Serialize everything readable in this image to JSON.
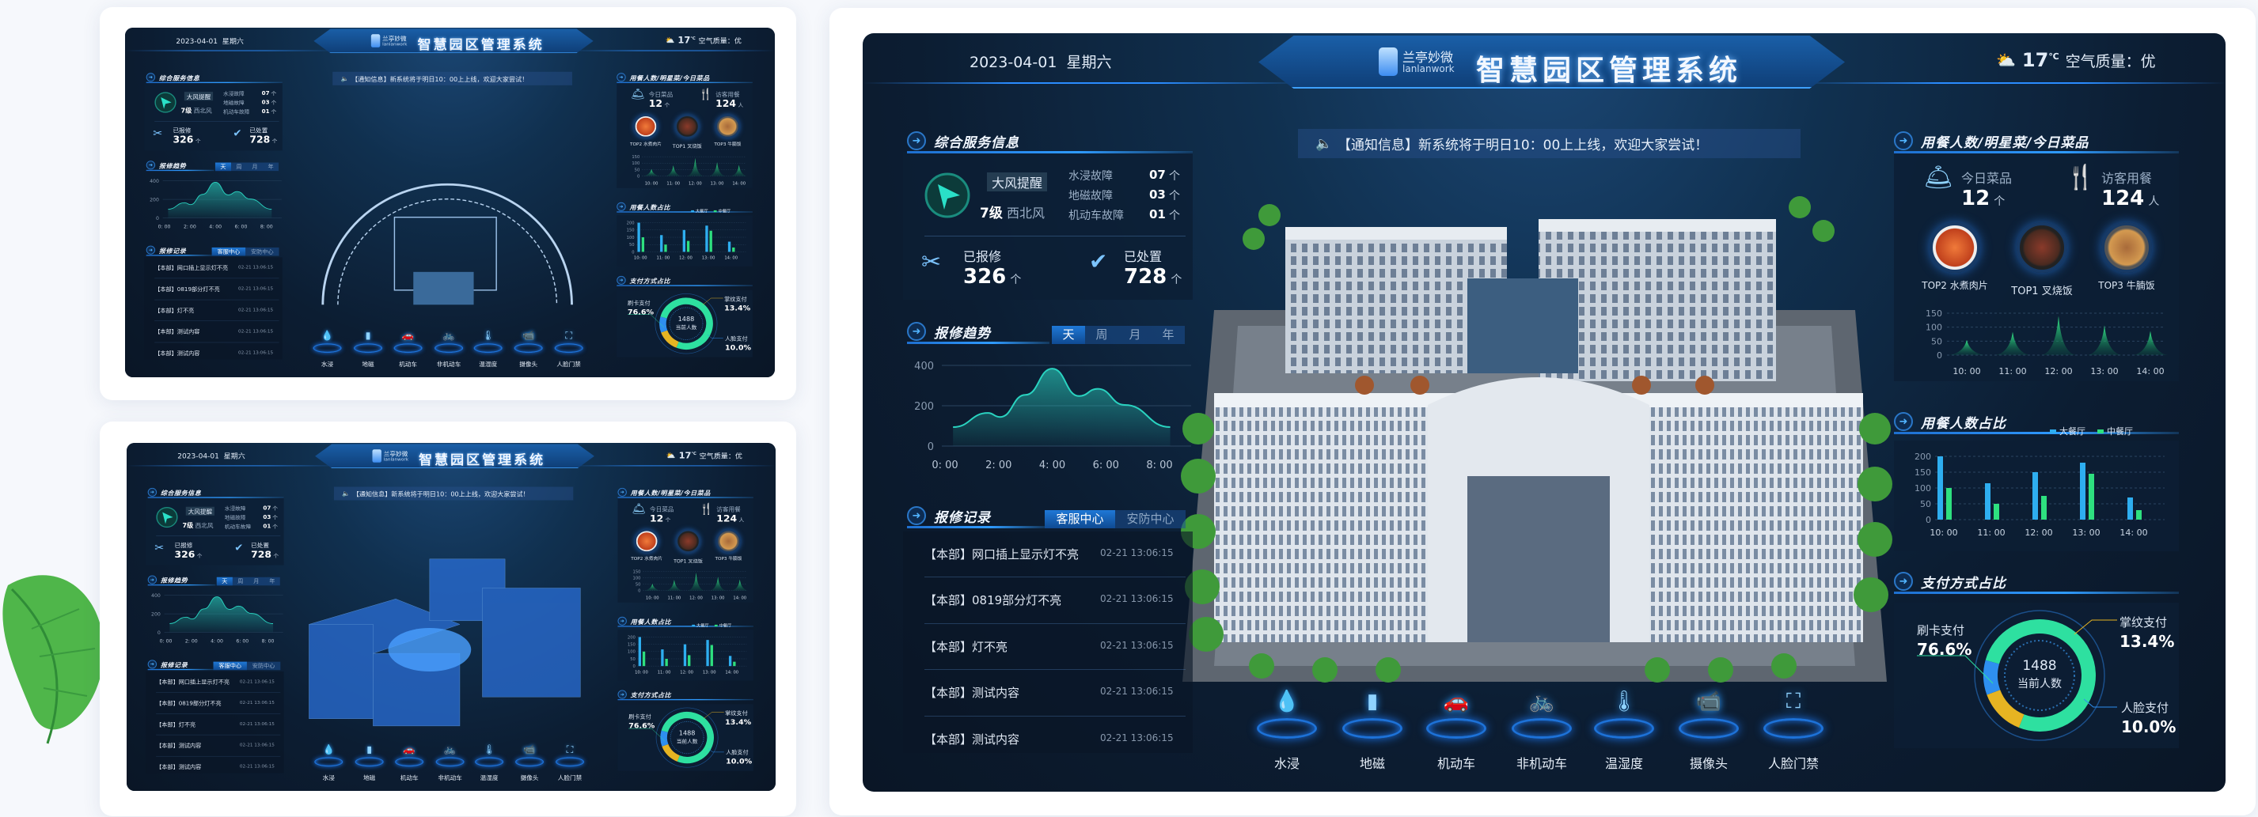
{
  "header": {
    "date": "2023-04-01",
    "weekday": "星期六",
    "logo_cn": "兰亭妙微",
    "logo_en": "lanlanwork",
    "title": "智慧园区管理系统",
    "temperature": "17",
    "temp_unit": "℃",
    "air_quality_label": "空气质量：",
    "air_quality": "优",
    "weather_icon": "partly-cloudy-icon"
  },
  "notice": {
    "text": "【通知信息】新系统将于明日10：00上上线，欢迎大家尝试！",
    "icon": "speaker-icon"
  },
  "left": {
    "service": {
      "title": "综合服务信息",
      "alert_title": "大风提醒",
      "alert_level": "7级",
      "alert_dir": "西北风",
      "faults": [
        {
          "label": "水浸故障",
          "value": "07",
          "unit": "个"
        },
        {
          "label": "地磁故障",
          "value": "03",
          "unit": "个"
        },
        {
          "label": "机动车故障",
          "value": "01",
          "unit": "个"
        }
      ],
      "reported": {
        "label": "已报修",
        "value": "326",
        "unit": "个"
      },
      "handled": {
        "label": "已处置",
        "value": "728",
        "unit": "个"
      }
    },
    "trend": {
      "title": "报修趋势",
      "tabs": [
        "天",
        "周",
        "月",
        "年"
      ],
      "active_tab": "天"
    },
    "records": {
      "title": "报修记录",
      "tabs": [
        "客服中心",
        "安防中心"
      ],
      "active_tab": "客服中心",
      "items": [
        {
          "text": "【本部】网口插上显示灯不亮",
          "time": "02-21  13:06:15"
        },
        {
          "text": "【本部】0819部分灯不亮",
          "time": "02-21  13:06:15"
        },
        {
          "text": "【本部】灯不亮",
          "time": "02-21  13:06:15"
        },
        {
          "text": "【本部】测试内容",
          "time": "02-21  13:06:15"
        },
        {
          "text": "【本部】测试内容",
          "time": "02-21  13:06:15"
        }
      ]
    }
  },
  "right": {
    "dining": {
      "title": "用餐人数/明星菜/今日菜品",
      "today_dishes": {
        "label": "今日菜品",
        "value": "12",
        "unit": "个"
      },
      "visitors": {
        "label": "访客用餐",
        "value": "124",
        "unit": "人"
      },
      "top_dishes": [
        {
          "label": "TOP2 水煮肉片"
        },
        {
          "label": "TOP1 叉烧饭"
        },
        {
          "label": "TOP3 牛腩饭"
        }
      ]
    },
    "ratio": {
      "title": "用餐人数占比"
    },
    "payment": {
      "title": "支付方式占比",
      "center_value": "1488",
      "center_label": "当前人数"
    }
  },
  "bottom_nav": [
    {
      "label": "水浸",
      "icon": "water-icon"
    },
    {
      "label": "地磁",
      "icon": "geomagnetic-icon"
    },
    {
      "label": "机动车",
      "icon": "car-icon"
    },
    {
      "label": "非机动车",
      "icon": "bicycle-icon"
    },
    {
      "label": "温湿度",
      "icon": "thermometer-icon"
    },
    {
      "label": "摄像头",
      "icon": "camera-icon"
    },
    {
      "label": "人脸门禁",
      "icon": "face-id-icon"
    }
  ],
  "colors": {
    "accent": "#2f9bff",
    "teal": "#2ad3c0",
    "green": "#2ee07f",
    "gold": "#e6b422",
    "blue": "#2e8ff0"
  },
  "chart_data": [
    {
      "type": "area",
      "ylim": [
        0,
        400
      ],
      "yticks": [
        "0",
        "200",
        "400"
      ],
      "xticks": [
        "0: 00",
        "2: 00",
        "4: 00",
        "6: 00",
        "8: 00"
      ],
      "xlim": [
        0,
        8
      ],
      "x": [
        0.3,
        1.6,
        2.05,
        3.0,
        4.0,
        5.0,
        5.7,
        6.7,
        8.4
      ],
      "y": [
        94,
        164,
        144,
        254,
        384,
        248,
        284,
        204,
        94
      ],
      "grid": true
    },
    {
      "type": "area",
      "ylim": [
        0,
        150
      ],
      "yticks": [
        "0",
        "50",
        "100",
        "150"
      ],
      "categories": [
        "10: 00",
        "11: 00",
        "12: 00",
        "13: 00",
        "14: 00"
      ],
      "values": [
        54,
        83,
        140,
        107,
        86
      ],
      "grid": true
    },
    {
      "type": "bar",
      "ylim": [
        0,
        200
      ],
      "yticks": [
        "0",
        "50",
        "100",
        "150",
        "200"
      ],
      "categories": [
        "10: 00",
        "11: 00",
        "12: 00",
        "13: 00",
        "14: 00"
      ],
      "series": [
        {
          "name": "大餐厅",
          "values": [
            200,
            115,
            150,
            180,
            70
          ],
          "color": "#2eaef0"
        },
        {
          "name": "中餐厅",
          "values": [
            100,
            50,
            75,
            145,
            30
          ],
          "color": "#2ee07f"
        }
      ],
      "legend": "top-right",
      "grid": true
    },
    {
      "type": "pie",
      "slices": [
        {
          "label": "刷卡支付",
          "value": 76.6,
          "text": "76.6%",
          "color": "#2ee0a0"
        },
        {
          "label": "掌纹支付",
          "value": 13.4,
          "text": "13.4%",
          "color": "#e6b422"
        },
        {
          "label": "人脸支付",
          "value": 10.0,
          "text": "10.0%",
          "color": "#2e8ff0"
        }
      ]
    }
  ]
}
